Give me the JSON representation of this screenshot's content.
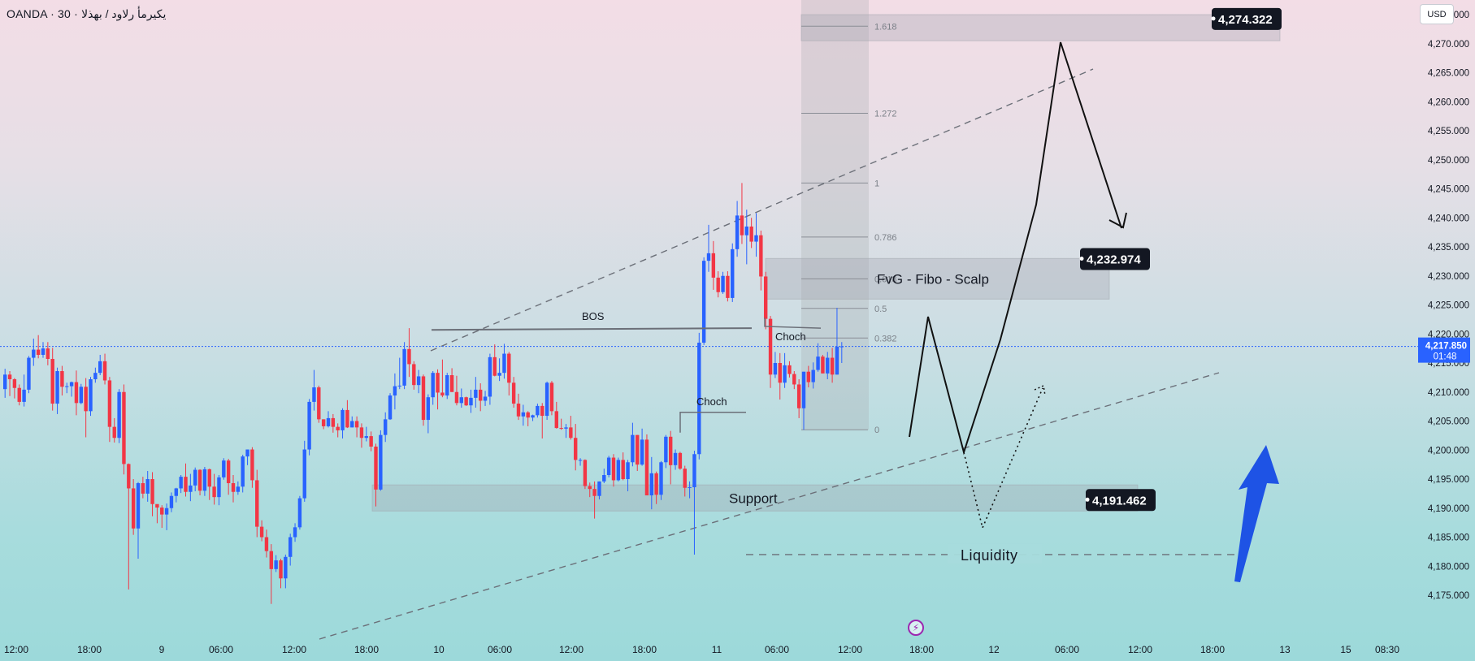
{
  "header": {
    "symbol": "OANDA · 30 · يكيرمأ رلاود / بهذلا",
    "currency": "USD"
  },
  "colors": {
    "bull": "#2962ff",
    "bear": "#f23645",
    "price_line": "#2962ff",
    "zone": "#9ea3ad",
    "arrow": "#1e53e5"
  },
  "icons": {
    "flash": "lightning-icon"
  },
  "chart_data": {
    "type": "candlestick",
    "instrument": "OANDA · 30 · يكيرمأ رلاود / بهذلا",
    "currency": "USD",
    "y_axis": {
      "range": [
        4172.5,
        4277.5
      ],
      "ticks": [
        "4,175.000",
        "4,180.000",
        "4,185.000",
        "4,190.000",
        "4,195.000",
        "4,200.000",
        "4,205.000",
        "4,210.000",
        "4,215.000",
        "4,220.000",
        "4,225.000",
        "4,230.000",
        "4,235.000",
        "4,240.000",
        "4,245.000",
        "4,250.000",
        "4,255.000",
        "4,260.000",
        "4,265.000",
        "4,270.000",
        "4,275.000"
      ]
    },
    "x_axis": {
      "ticks": [
        "12:00",
        "18:00",
        "9",
        "06:00",
        "12:00",
        "18:00",
        "10",
        "06:00",
        "12:00",
        "18:00",
        "11",
        "06:00",
        "12:00",
        "18:00",
        "12",
        "06:00",
        "12:00",
        "18:00",
        "13",
        "15",
        "08:30"
      ]
    },
    "current_price": {
      "value": "4,217.850",
      "countdown": "01:48",
      "y": 4217.85
    },
    "price_labels": [
      {
        "text": "4,274.322",
        "y": 4274.322
      },
      {
        "text": "4,232.974",
        "y": 4232.974
      },
      {
        "text": "4,191.462",
        "y": 4191.462
      }
    ],
    "zones": [
      {
        "name": "Support",
        "label": "Support",
        "y_top": 4194.0,
        "y_bottom": 4189.5
      },
      {
        "name": "FvG",
        "label": "FvG - Fibo - Scalp",
        "y_top": 4233.0,
        "y_bottom": 4226.0
      },
      {
        "name": "target",
        "label": "",
        "y_top": 4275.0,
        "y_bottom": 4270.5
      }
    ],
    "fibonacci": [
      {
        "label": "1.618",
        "y": 4273.0
      },
      {
        "label": "1.272",
        "y": 4258.0
      },
      {
        "label": "1",
        "y": 4246.0
      },
      {
        "label": "0.786",
        "y": 4236.7
      },
      {
        "label": "0.618",
        "y": 4229.5
      },
      {
        "label": "0.5",
        "y": 4224.4
      },
      {
        "label": "0.382",
        "y": 4219.3
      },
      {
        "label": "0",
        "y": 4203.5
      }
    ],
    "annotations": [
      {
        "text": "BOS",
        "y": 4221.0
      },
      {
        "text": "Choch",
        "y": 4221.0
      },
      {
        "text": "Choch",
        "y": 4206.5
      },
      {
        "text": "Liquidity",
        "y": 4182.0
      }
    ],
    "candles": [
      [
        4210.5,
        4213.0,
        4209.0,
        4214.0
      ],
      [
        4213.0,
        4212.2,
        4209.3,
        4213.6
      ],
      [
        4212.2,
        4210.7,
        4208.9,
        4212.4
      ],
      [
        4210.7,
        4208.3,
        4207.7,
        4211.3
      ],
      [
        4208.3,
        4210.4,
        4207.5,
        4213.0
      ],
      [
        4210.4,
        4215.9,
        4209.8,
        4216.2
      ],
      [
        4215.9,
        4217.3,
        4214.5,
        4219.2
      ],
      [
        4217.3,
        4216.4,
        4215.8,
        4219.8
      ],
      [
        4216.4,
        4217.5,
        4215.9,
        4218.6
      ],
      [
        4217.5,
        4215.7,
        4214.6,
        4218.6
      ],
      [
        4215.7,
        4208.0,
        4206.8,
        4217.6
      ],
      [
        4208.0,
        4213.6,
        4206.2,
        4214.2
      ],
      [
        4213.6,
        4210.9,
        4209.4,
        4214.5
      ],
      [
        4210.9,
        4211.0,
        4209.8,
        4211.6
      ],
      [
        4211.0,
        4211.7,
        4209.2,
        4211.8
      ],
      [
        4211.7,
        4208.1,
        4206.0,
        4213.7
      ],
      [
        4208.1,
        4210.9,
        4207.9,
        4211.4
      ],
      [
        4210.9,
        4206.7,
        4202.2,
        4212.4
      ],
      [
        4206.7,
        4212.2,
        4205.9,
        4212.6
      ],
      [
        4212.2,
        4213.3,
        4211.6,
        4214.2
      ],
      [
        4213.3,
        4215.3,
        4212.9,
        4216.4
      ],
      [
        4215.3,
        4212.0,
        4211.3,
        4216.6
      ],
      [
        4212.0,
        4204.0,
        4201.4,
        4212.6
      ],
      [
        4204.0,
        4202.1,
        4201.3,
        4205.5
      ],
      [
        4202.1,
        4210.0,
        4201.2,
        4210.5
      ],
      [
        4210.0,
        4197.6,
        4195.8,
        4211.3
      ],
      [
        4197.6,
        4193.4,
        4176.0,
        4197.7
      ],
      [
        4193.4,
        4186.5,
        4185.4,
        4195.0
      ],
      [
        4186.5,
        4194.3,
        4181.3,
        4194.5
      ],
      [
        4194.3,
        4192.5,
        4191.7,
        4195.4
      ],
      [
        4192.5,
        4195.0,
        4191.1,
        4196.4
      ],
      [
        4195.0,
        4190.7,
        4188.6,
        4196.2
      ],
      [
        4190.7,
        4190.1,
        4187.4,
        4190.4
      ],
      [
        4190.1,
        4188.9,
        4186.6,
        4190.5
      ],
      [
        4188.9,
        4190.0,
        4186.2,
        4190.8
      ],
      [
        4190.0,
        4192.1,
        4189.3,
        4192.7
      ],
      [
        4192.1,
        4193.4,
        4191.0,
        4193.5
      ],
      [
        4193.4,
        4195.4,
        4192.6,
        4195.7
      ],
      [
        4195.4,
        4192.8,
        4192.0,
        4197.7
      ],
      [
        4192.8,
        4193.9,
        4191.2,
        4195.9
      ],
      [
        4193.9,
        4196.6,
        4192.9,
        4197.0
      ],
      [
        4196.6,
        4193.0,
        4192.2,
        4196.7
      ],
      [
        4193.0,
        4196.7,
        4192.1,
        4197.1
      ],
      [
        4196.7,
        4193.7,
        4191.4,
        4196.8
      ],
      [
        4193.7,
        4191.9,
        4190.6,
        4195.9
      ],
      [
        4191.9,
        4195.3,
        4190.5,
        4195.7
      ],
      [
        4195.3,
        4198.2,
        4194.9,
        4198.6
      ],
      [
        4198.2,
        4194.3,
        4192.3,
        4198.5
      ],
      [
        4194.3,
        4192.8,
        4191.0,
        4195.7
      ],
      [
        4192.8,
        4193.7,
        4192.3,
        4194.6
      ],
      [
        4193.7,
        4198.9,
        4192.7,
        4199.2
      ],
      [
        4198.9,
        4200.1,
        4197.4,
        4200.1
      ],
      [
        4200.1,
        4194.8,
        4193.5,
        4200.5
      ],
      [
        4194.8,
        4186.8,
        4185.0,
        4196.6
      ],
      [
        4186.8,
        4185.0,
        4184.3,
        4187.9
      ],
      [
        4185.0,
        4182.6,
        4181.5,
        4186.3
      ],
      [
        4182.6,
        4179.5,
        4173.5,
        4183.8
      ],
      [
        4179.5,
        4181.0,
        4179.0,
        4181.9
      ],
      [
        4181.0,
        4177.9,
        4176.2,
        4181.3
      ],
      [
        4177.9,
        4181.6,
        4176.2,
        4182.0
      ],
      [
        4181.6,
        4185.0,
        4180.1,
        4185.6
      ],
      [
        4185.0,
        4186.7,
        4184.2,
        4187.4
      ],
      [
        4186.7,
        4191.7,
        4186.3,
        4192.1
      ],
      [
        4191.7,
        4200.1,
        4191.1,
        4201.6
      ],
      [
        4200.1,
        4208.3,
        4199.1,
        4208.8
      ],
      [
        4208.3,
        4210.8,
        4206.8,
        4213.8
      ],
      [
        4210.8,
        4205.3,
        4204.7,
        4211.1
      ],
      [
        4205.3,
        4204.1,
        4203.6,
        4205.3
      ],
      [
        4204.1,
        4205.5,
        4203.9,
        4206.7
      ],
      [
        4205.5,
        4204.0,
        4203.0,
        4206.2
      ],
      [
        4204.0,
        4203.4,
        4202.2,
        4204.6
      ],
      [
        4203.4,
        4206.9,
        4202.0,
        4207.2
      ],
      [
        4206.9,
        4203.9,
        4203.8,
        4208.6
      ],
      [
        4203.9,
        4205.0,
        4203.9,
        4205.8
      ],
      [
        4205.0,
        4203.9,
        4202.2,
        4205.8
      ],
      [
        4203.9,
        4202.1,
        4200.4,
        4204.6
      ],
      [
        4202.1,
        4202.4,
        4201.5,
        4204.0
      ],
      [
        4202.4,
        4200.6,
        4199.8,
        4203.2
      ],
      [
        4200.6,
        4193.2,
        4190.3,
        4201.1
      ],
      [
        4193.2,
        4202.6,
        4193.0,
        4203.4
      ],
      [
        4202.6,
        4205.3,
        4201.4,
        4206.5
      ],
      [
        4205.3,
        4209.4,
        4205.2,
        4209.8
      ],
      [
        4209.4,
        4211.0,
        4207.0,
        4213.2
      ],
      [
        4211.0,
        4211.1,
        4210.5,
        4215.9
      ],
      [
        4211.1,
        4217.4,
        4210.5,
        4218.6
      ],
      [
        4217.4,
        4214.8,
        4212.6,
        4221.0
      ],
      [
        4214.8,
        4211.2,
        4210.4,
        4215.3
      ],
      [
        4211.2,
        4212.7,
        4209.8,
        4213.8
      ],
      [
        4212.7,
        4205.2,
        4204.2,
        4213.0
      ],
      [
        4205.2,
        4209.1,
        4202.9,
        4209.6
      ],
      [
        4209.1,
        4213.3,
        4207.8,
        4213.6
      ],
      [
        4213.3,
        4209.9,
        4207.0,
        4213.9
      ],
      [
        4209.9,
        4209.4,
        4209.1,
        4215.6
      ],
      [
        4209.4,
        4212.9,
        4208.8,
        4213.3
      ],
      [
        4212.9,
        4210.0,
        4210.0,
        4214.1
      ],
      [
        4210.0,
        4208.1,
        4207.7,
        4212.8
      ],
      [
        4208.1,
        4209.1,
        4207.3,
        4210.6
      ],
      [
        4209.1,
        4207.7,
        4207.6,
        4209.2
      ],
      [
        4207.7,
        4209.0,
        4206.4,
        4210.4
      ],
      [
        4209.0,
        4210.4,
        4207.3,
        4212.6
      ],
      [
        4210.4,
        4208.5,
        4206.7,
        4211.5
      ],
      [
        4208.5,
        4209.2,
        4207.6,
        4210.2
      ],
      [
        4209.2,
        4216.0,
        4207.8,
        4216.6
      ],
      [
        4216.0,
        4212.8,
        4212.7,
        4218.2
      ],
      [
        4212.8,
        4213.3,
        4211.9,
        4215.8
      ],
      [
        4213.3,
        4216.6,
        4212.3,
        4218.3
      ],
      [
        4216.6,
        4211.6,
        4209.4,
        4216.9
      ],
      [
        4211.6,
        4208.0,
        4207.3,
        4212.6
      ],
      [
        4208.0,
        4205.8,
        4205.2,
        4209.7
      ],
      [
        4205.8,
        4206.5,
        4204.2,
        4207.8
      ],
      [
        4206.5,
        4205.6,
        4204.1,
        4206.7
      ],
      [
        4205.6,
        4206.0,
        4205.0,
        4206.1
      ],
      [
        4206.0,
        4207.6,
        4205.6,
        4208.0
      ],
      [
        4207.6,
        4205.9,
        4202.0,
        4208.1
      ],
      [
        4205.9,
        4211.6,
        4205.2,
        4211.8
      ],
      [
        4211.6,
        4206.7,
        4206.0,
        4211.9
      ],
      [
        4206.7,
        4203.8,
        4203.7,
        4208.3
      ],
      [
        4203.8,
        4203.7,
        4203.5,
        4205.4
      ],
      [
        4203.7,
        4203.9,
        4202.1,
        4204.5
      ],
      [
        4203.9,
        4202.1,
        4201.8,
        4205.9
      ],
      [
        4202.1,
        4198.3,
        4196.5,
        4204.5
      ],
      [
        4198.3,
        4198.3,
        4197.3,
        4198.6
      ],
      [
        4198.3,
        4193.8,
        4193.3,
        4198.4
      ],
      [
        4193.8,
        4193.3,
        4191.9,
        4194.4
      ],
      [
        4193.3,
        4192.1,
        4188.2,
        4194.6
      ],
      [
        4192.1,
        4194.6,
        4191.5,
        4194.6
      ],
      [
        4194.6,
        4195.7,
        4194.3,
        4196.8
      ],
      [
        4195.7,
        4198.7,
        4195.3,
        4199.0
      ],
      [
        4198.7,
        4194.8,
        4193.7,
        4199.3
      ],
      [
        4194.8,
        4198.3,
        4194.6,
        4198.7
      ],
      [
        4198.3,
        4195.0,
        4194.8,
        4199.6
      ],
      [
        4195.0,
        4197.9,
        4192.9,
        4198.3
      ],
      [
        4197.9,
        4202.6,
        4197.2,
        4204.7
      ],
      [
        4202.6,
        4197.5,
        4196.4,
        4202.6
      ],
      [
        4197.5,
        4201.8,
        4197.3,
        4203.7
      ],
      [
        4201.8,
        4192.2,
        4192.2,
        4202.7
      ],
      [
        4192.2,
        4196.0,
        4189.8,
        4198.8
      ],
      [
        4196.0,
        4192.3,
        4190.7,
        4196.3
      ],
      [
        4192.3,
        4197.9,
        4191.4,
        4198.1
      ],
      [
        4197.9,
        4202.3,
        4196.9,
        4202.6
      ],
      [
        4202.3,
        4197.4,
        4194.1,
        4203.3
      ],
      [
        4197.4,
        4199.5,
        4196.6,
        4200.1
      ],
      [
        4199.5,
        4196.8,
        4196.6,
        4199.7
      ],
      [
        4196.8,
        4193.5,
        4192.0,
        4197.3
      ],
      [
        4193.5,
        4193.6,
        4191.7,
        4194.6
      ],
      [
        4193.6,
        4199.3,
        4182.0,
        4199.9
      ],
      [
        4199.3,
        4218.5,
        4198.4,
        4220.2
      ],
      [
        4218.5,
        4232.6,
        4218.1,
        4233.2
      ],
      [
        4232.6,
        4233.9,
        4230.7,
        4238.8
      ],
      [
        4233.9,
        4229.7,
        4227.6,
        4236.0
      ],
      [
        4229.7,
        4227.2,
        4226.3,
        4230.8
      ],
      [
        4227.2,
        4230.0,
        4226.9,
        4230.7
      ],
      [
        4230.0,
        4226.2,
        4225.6,
        4230.8
      ],
      [
        4226.2,
        4234.6,
        4225.5,
        4235.6
      ],
      [
        4234.6,
        4240.4,
        4233.3,
        4242.9
      ],
      [
        4240.4,
        4237.0,
        4235.5,
        4246.0
      ],
      [
        4237.0,
        4238.5,
        4232.0,
        4241.4
      ],
      [
        4238.5,
        4235.9,
        4234.8,
        4240.0
      ],
      [
        4235.9,
        4237.0,
        4233.3,
        4240.8
      ],
      [
        4237.0,
        4229.9,
        4227.5,
        4237.8
      ],
      [
        4229.9,
        4222.6,
        4220.8,
        4230.7
      ],
      [
        4222.6,
        4213.0,
        4210.7,
        4223.1
      ],
      [
        4213.0,
        4215.0,
        4212.4,
        4216.9
      ],
      [
        4215.0,
        4211.6,
        4208.7,
        4216.7
      ],
      [
        4211.6,
        4214.6,
        4210.7,
        4216.7
      ],
      [
        4214.6,
        4213.1,
        4212.5,
        4215.3
      ],
      [
        4213.1,
        4211.3,
        4210.5,
        4213.6
      ],
      [
        4211.3,
        4207.2,
        4205.5,
        4212.2
      ],
      [
        4207.2,
        4213.5,
        4203.5,
        4213.5
      ],
      [
        4213.5,
        4211.7,
        4210.8,
        4214.5
      ],
      [
        4211.7,
        4213.8,
        4210.6,
        4215.1
      ],
      [
        4213.8,
        4216.1,
        4213.5,
        4218.4
      ],
      [
        4216.1,
        4213.2,
        4213.2,
        4216.4
      ],
      [
        4213.2,
        4215.9,
        4212.2,
        4216.9
      ],
      [
        4215.9,
        4213.0,
        4211.6,
        4217.6
      ],
      [
        4213.0,
        4217.8,
        4213.0,
        4224.5
      ],
      [
        4217.8,
        4217.85,
        4215.0,
        4218.6
      ]
    ]
  }
}
